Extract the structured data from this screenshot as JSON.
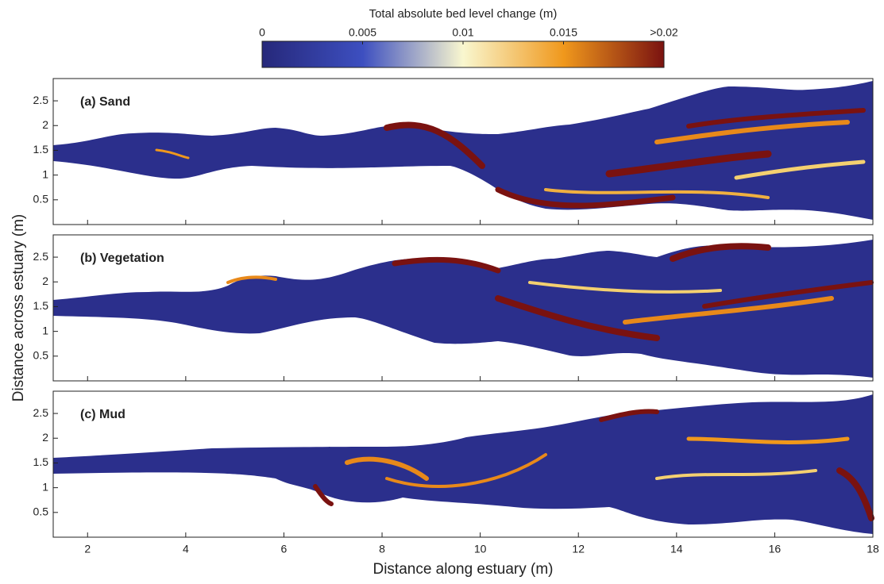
{
  "chart_data": {
    "type": "heatmap",
    "colorbar_title": "Total absolute bed level change (m)",
    "clim": [
      0,
      0.02
    ],
    "cticks": [
      0,
      0.005,
      0.01,
      0.015,
      {
        "value": 0.02,
        "label": ">0.02"
      }
    ],
    "colormap": [
      "#26287a",
      "#3d4fc0",
      "#f9f7cf",
      "#f0981c",
      "#7a1210"
    ],
    "xlabel": "Distance along estuary (m)",
    "ylabel": "Distance across estuary (m)",
    "xlim": [
      1.3,
      18
    ],
    "xticks": [
      2,
      4,
      6,
      8,
      10,
      12,
      14,
      16,
      18
    ],
    "ylim": [
      0,
      2.95
    ],
    "yticks": [
      0.5,
      1,
      1.5,
      2,
      2.5
    ],
    "panels": [
      {
        "title": "(a) Sand"
      },
      {
        "title": "(b) Vegetation"
      },
      {
        "title": "(c) Mud"
      }
    ]
  }
}
